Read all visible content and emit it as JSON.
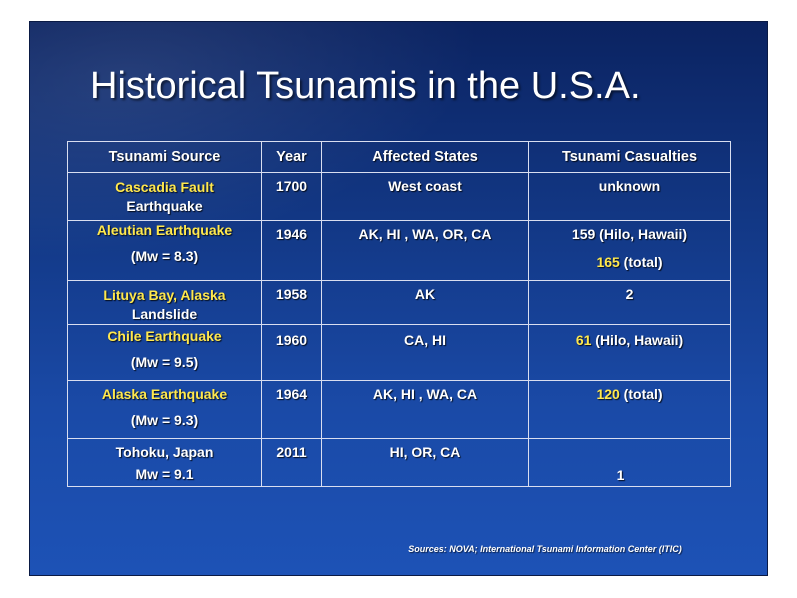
{
  "title": "Historical Tsunamis in the U.S.A.",
  "table": {
    "headers": [
      "Tsunami Source",
      "Year",
      "Affected States",
      "Tsunami Casualties"
    ],
    "rows": [
      {
        "source_a": "Cascadia Fault",
        "source_b": "Earthquake",
        "year": "1700",
        "states": "West coast",
        "casualties_a": "unknown",
        "casualties_b": "",
        "casualties_c": ""
      },
      {
        "source_a": "Aleutian Earthquake",
        "source_b": "(Mw = 8.3)",
        "year": "1946",
        "states": "AK, HI , WA, OR, CA",
        "casualties_a": "159 (Hilo, Hawaii)",
        "casualties_b": "165",
        "casualties_c": " (total)"
      },
      {
        "source_a": "Lituya Bay, Alaska",
        "source_b": "Landslide",
        "year": "1958",
        "states": "AK",
        "casualties_a": "2",
        "casualties_b": "",
        "casualties_c": ""
      },
      {
        "source_a": "Chile Earthquake",
        "source_b": "(Mw = 9.5)",
        "year": "1960",
        "states": "CA, HI",
        "casualties_a": "61",
        "casualties_b": " (Hilo, Hawaii)",
        "casualties_c": ""
      },
      {
        "source_a": "Alaska Earthquake",
        "source_b": "(Mw = 9.3)",
        "year": "1964",
        "states": "AK, HI , WA, CA",
        "casualties_a": "120",
        "casualties_b": " (total)",
        "casualties_c": ""
      },
      {
        "source_a": "Tohoku, Japan Mw = 9.1",
        "source_b": "",
        "year": "2011",
        "states": "HI, OR, CA",
        "casualties_a": "1",
        "casualties_b": "",
        "casualties_c": ""
      }
    ]
  },
  "sources": "Sources: NOVA; International Tsunami Information Center (ITIC)",
  "colors": {
    "highlight": "#ffe84d",
    "text": "#ffffff",
    "background": "#123784"
  }
}
